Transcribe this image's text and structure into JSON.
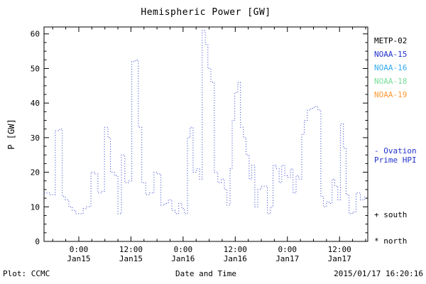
{
  "title": "Hemispheric Power [GW]",
  "footer": {
    "plot_credit": "Plot: CCMC",
    "timestamp": "2015/01/17 16:20:16"
  },
  "legend": {
    "satellites": [
      {
        "label": "METP-02",
        "color": "#000000"
      },
      {
        "label": "NOAA-15",
        "color": "#2233cc"
      },
      {
        "label": "NOAA-16",
        "color": "#33aaee"
      },
      {
        "label": "NOAA-18",
        "color": "#77dd99"
      },
      {
        "label": "NOAA-19",
        "color": "#ff9933"
      }
    ],
    "ovation_line1": "- Ovation",
    "ovation_line2": "Prime HPI",
    "ovation_color": "#2233cc",
    "south_marker": "+ south",
    "north_marker": "* north"
  },
  "chart_data": {
    "type": "line",
    "line_style": "dotted-step",
    "title": "Hemispheric Power [GW]",
    "xlabel": "Date and Time",
    "ylabel": "P [GW]",
    "ylim": [
      0,
      62
    ],
    "yticks": [
      0,
      10,
      20,
      30,
      40,
      50,
      60
    ],
    "y_minor_step": 2.5,
    "x_minor_step_hours": 3,
    "xlim_hours": [
      0,
      74.5
    ],
    "xticks": [
      {
        "t": 8,
        "time": "0:00",
        "date": "Jan15"
      },
      {
        "t": 20,
        "time": "12:00",
        "date": "Jan15"
      },
      {
        "t": 32,
        "time": "0:00",
        "date": "Jan16"
      },
      {
        "t": 44,
        "time": "12:00",
        "date": "Jan16"
      },
      {
        "t": 56,
        "time": "0:00",
        "date": "Jan17"
      },
      {
        "t": 68,
        "time": "12:00",
        "date": "Jan17"
      }
    ],
    "grid": false,
    "legend_position": "right-outside",
    "series": [
      {
        "name": "Ovation Prime HPI (NOAA)",
        "color": "#2233cc",
        "points": [
          [
            0,
            14
          ],
          [
            1.3,
            13.5
          ],
          [
            2.6,
            32
          ],
          [
            3.6,
            32.5
          ],
          [
            4.2,
            13
          ],
          [
            4.9,
            12
          ],
          [
            5.7,
            10
          ],
          [
            6.5,
            9
          ],
          [
            7.3,
            8
          ],
          [
            8.2,
            8
          ],
          [
            9,
            9.5
          ],
          [
            9.8,
            10
          ],
          [
            10.8,
            20
          ],
          [
            11.6,
            19.5
          ],
          [
            12.4,
            14
          ],
          [
            13.2,
            14.5
          ],
          [
            13.9,
            33
          ],
          [
            14.7,
            30
          ],
          [
            15.3,
            20
          ],
          [
            16.2,
            19
          ],
          [
            17,
            8
          ],
          [
            17.8,
            25
          ],
          [
            18.6,
            17
          ],
          [
            19.4,
            17.5
          ],
          [
            20.2,
            52
          ],
          [
            21.1,
            52.5
          ],
          [
            21.7,
            33
          ],
          [
            22.5,
            17
          ],
          [
            23.4,
            13.5
          ],
          [
            24.3,
            14
          ],
          [
            25.3,
            20
          ],
          [
            26.1,
            19.5
          ],
          [
            26.9,
            10.5
          ],
          [
            27.8,
            11
          ],
          [
            28.6,
            12
          ],
          [
            29.4,
            9
          ],
          [
            30.2,
            8
          ],
          [
            31,
            11
          ],
          [
            31.7,
            9.5
          ],
          [
            32.3,
            8
          ],
          [
            33,
            30
          ],
          [
            33.6,
            33
          ],
          [
            34.3,
            20
          ],
          [
            35.1,
            21
          ],
          [
            35.8,
            18
          ],
          [
            36.4,
            61
          ],
          [
            37.1,
            57
          ],
          [
            37.7,
            50
          ],
          [
            38.4,
            46
          ],
          [
            39.2,
            20
          ],
          [
            40,
            17
          ],
          [
            40.8,
            18
          ],
          [
            41.5,
            15
          ],
          [
            42.1,
            10.5
          ],
          [
            42.8,
            21
          ],
          [
            43.3,
            35
          ],
          [
            43.9,
            43
          ],
          [
            44.6,
            46
          ],
          [
            45.2,
            33
          ],
          [
            45.9,
            30
          ],
          [
            46.5,
            25
          ],
          [
            47.2,
            18
          ],
          [
            47.8,
            22
          ],
          [
            48.5,
            10
          ],
          [
            49.2,
            15
          ],
          [
            50,
            16
          ],
          [
            50.8,
            16
          ],
          [
            51.4,
            8
          ],
          [
            52.1,
            10
          ],
          [
            52.7,
            22
          ],
          [
            53.4,
            21
          ],
          [
            54.1,
            17
          ],
          [
            54.7,
            22
          ],
          [
            55.4,
            19
          ],
          [
            56,
            18.5
          ],
          [
            56.7,
            21
          ],
          [
            57.3,
            14
          ],
          [
            58,
            19
          ],
          [
            58.6,
            18
          ],
          [
            59.3,
            31
          ],
          [
            59.9,
            35
          ],
          [
            60.6,
            38
          ],
          [
            61.4,
            38.5
          ],
          [
            62.2,
            39
          ],
          [
            63,
            38
          ],
          [
            63.7,
            13
          ],
          [
            64.3,
            10
          ],
          [
            65,
            11.5
          ],
          [
            65.6,
            11
          ],
          [
            66.3,
            18
          ],
          [
            66.9,
            16
          ],
          [
            67.6,
            12
          ],
          [
            68.2,
            34
          ],
          [
            68.9,
            27
          ],
          [
            69.5,
            13.5
          ],
          [
            70.2,
            8
          ],
          [
            71,
            8.5
          ],
          [
            71.8,
            14
          ],
          [
            72.8,
            12
          ],
          [
            73.8,
            13
          ]
        ]
      }
    ]
  }
}
